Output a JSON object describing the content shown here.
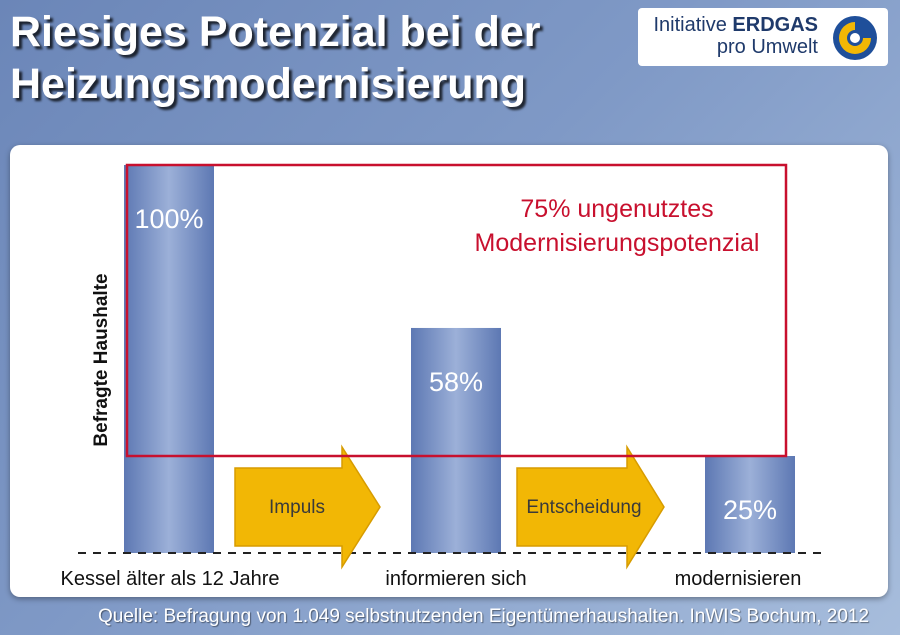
{
  "title": "Riesiges Potenzial bei der Heizungsmodernisierung",
  "brand": {
    "line1_prefix": "Initiative",
    "line1_bold": "ERDGAS",
    "line2": "pro Umwelt",
    "logo_icon": "erdgas-logo-icon"
  },
  "source": "Quelle: Befragung von 1.049 selbstnutzenden Eigentümerhaushalten. InWIS Bochum, 2012",
  "colors": {
    "bar": "#7f96c8",
    "bar_edge": "#4d67a3",
    "highlight": "#c8102e",
    "arrow": "#f2b705"
  },
  "chart_data": {
    "type": "bar",
    "ylabel": "Befragte Haushalte",
    "ylim": [
      0,
      100
    ],
    "categories": [
      "Kessel älter als 12 Jahre",
      "informieren sich",
      "modernisieren"
    ],
    "values": [
      100,
      58,
      25
    ],
    "data_labels": [
      "100%",
      "58%",
      "25%"
    ],
    "arrows": [
      "Impuls",
      "Entscheidung"
    ],
    "annotation": {
      "line1": "75% ungenutztes",
      "line2": "Modernisierungspotenzial",
      "range": [
        25,
        100
      ]
    }
  }
}
